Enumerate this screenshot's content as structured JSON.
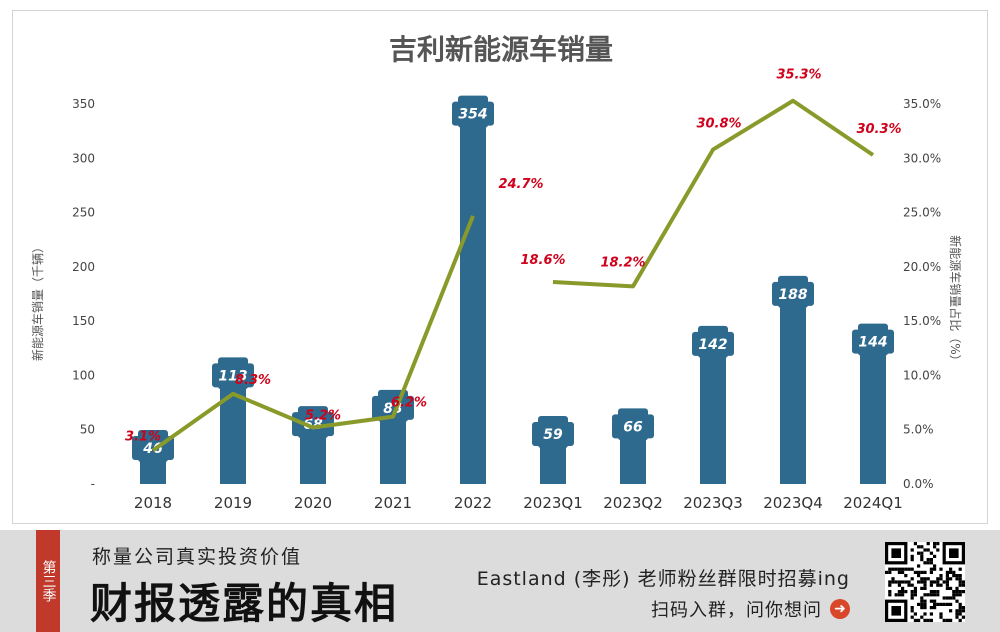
{
  "chart_data": {
    "type": "bar",
    "title": "吉利新能源车销量",
    "categories": [
      "2018",
      "2019",
      "2020",
      "2021",
      "2022",
      "2023Q1",
      "2023Q2",
      "2023Q3",
      "2023Q4",
      "2024Q1"
    ],
    "series": [
      {
        "kind": "bar",
        "axis": "left",
        "values": [
          46,
          113,
          68,
          83,
          354,
          59,
          66,
          142,
          188,
          144
        ]
      },
      {
        "kind": "line",
        "axis": "right",
        "values": [
          3.1,
          8.3,
          5.2,
          6.2,
          24.7,
          18.6,
          18.2,
          30.8,
          35.3,
          30.3
        ],
        "labels": [
          "3.1%",
          "8.3%",
          "5.2%",
          "6.2%",
          "24.7%",
          "18.6%",
          "18.2%",
          "30.8%",
          "35.3%",
          "30.3%"
        ]
      }
    ],
    "ylabel": "新能源车销量（千辆）",
    "y2label": "新能源车销量占比（%）",
    "ylim": [
      0,
      350
    ],
    "y2lim": [
      0,
      35
    ],
    "yticks": [
      "-",
      "50",
      "100",
      "150",
      "200",
      "250",
      "300",
      "350"
    ],
    "y2ticks": [
      "0.0%",
      "5.0%",
      "10.0%",
      "15.0%",
      "20.0%",
      "25.0%",
      "30.0%",
      "35.0%"
    ],
    "grid": false,
    "colors": {
      "bar": "#2e6a8e",
      "line": "#8a9a2a",
      "line_label": "#d0021b",
      "bar_label": "#ffffff"
    }
  },
  "banner": {
    "badge": "第三季",
    "subtitle": "称量公司真实投资价值",
    "title": "财报透露的真相",
    "promo": "Eastland (李彤) 老师粉丝群限时招募ing",
    "scan": "扫码入群，问你想问",
    "arrow_icon": "arrow-right-circle-icon",
    "qr_icon": "qr-code-icon"
  }
}
